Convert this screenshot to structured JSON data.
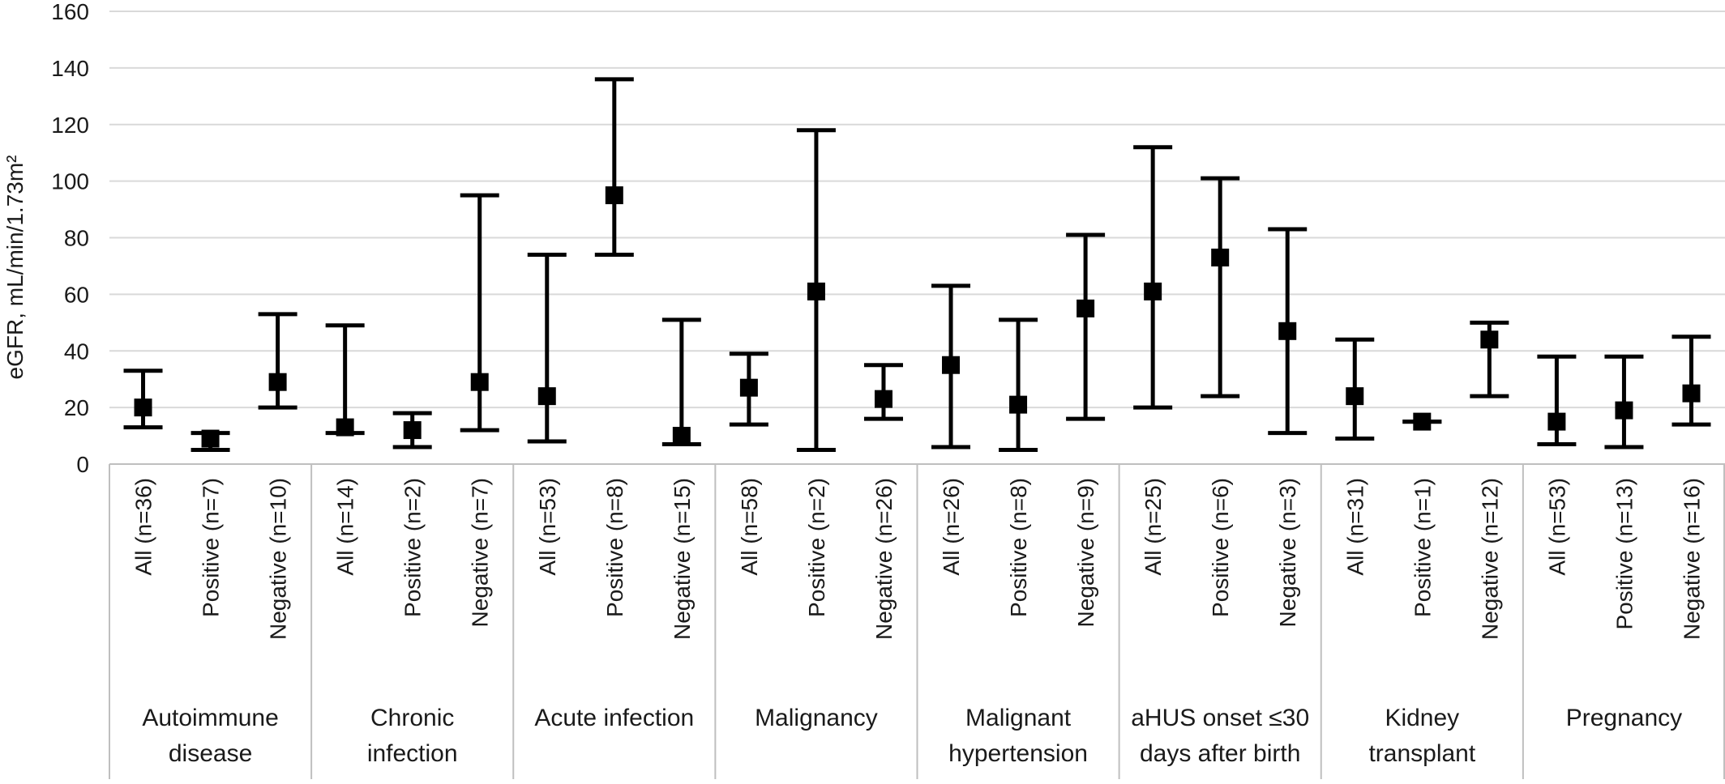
{
  "chart_data": {
    "type": "scatter",
    "title": "",
    "ylabel": "eGFR, mL/min/1.73m²",
    "ylim": [
      0,
      160
    ],
    "yticks": [
      0,
      20,
      40,
      60,
      80,
      100,
      120,
      140,
      160
    ],
    "grid": true,
    "marker": "square",
    "error_bars": true,
    "groups": [
      {
        "label": [
          "Autoimmune",
          "disease"
        ],
        "items": [
          {
            "label": "All (n=36)",
            "value": 20,
            "low": 13,
            "high": 33
          },
          {
            "label": "Positive (n=7)",
            "value": 9,
            "low": 5,
            "high": 11
          },
          {
            "label": "Negative (n=10)",
            "value": 29,
            "low": 20,
            "high": 53
          }
        ]
      },
      {
        "label": [
          "Chronic",
          "infection"
        ],
        "items": [
          {
            "label": "All (n=14)",
            "value": 13,
            "low": 11,
            "high": 49
          },
          {
            "label": "Positive (n=2)",
            "value": 12,
            "low": 6,
            "high": 18
          },
          {
            "label": "Negative (n=7)",
            "value": 29,
            "low": 12,
            "high": 95
          }
        ]
      },
      {
        "label": [
          "Acute infection"
        ],
        "items": [
          {
            "label": "All (n=53)",
            "value": 24,
            "low": 8,
            "high": 74
          },
          {
            "label": "Positive (n=8)",
            "value": 95,
            "low": 74,
            "high": 136
          },
          {
            "label": "Negative (n=15)",
            "value": 10,
            "low": 7,
            "high": 51
          }
        ]
      },
      {
        "label": [
          "Malignancy"
        ],
        "items": [
          {
            "label": "All (n=58)",
            "value": 27,
            "low": 14,
            "high": 39
          },
          {
            "label": "Positive (n=2)",
            "value": 61,
            "low": 5,
            "high": 118
          },
          {
            "label": "Negative (n=26)",
            "value": 23,
            "low": 16,
            "high": 35
          }
        ]
      },
      {
        "label": [
          "Malignant",
          "hypertension"
        ],
        "items": [
          {
            "label": "All (n=26)",
            "value": 35,
            "low": 6,
            "high": 63
          },
          {
            "label": "Positive (n=8)",
            "value": 21,
            "low": 5,
            "high": 51
          },
          {
            "label": "Negative (n=9)",
            "value": 55,
            "low": 16,
            "high": 81
          }
        ]
      },
      {
        "label": [
          "aHUS onset ≤30",
          "days after birth"
        ],
        "items": [
          {
            "label": "All (n=25)",
            "value": 61,
            "low": 20,
            "high": 112
          },
          {
            "label": "Positive (n=6)",
            "value": 73,
            "low": 24,
            "high": 101
          },
          {
            "label": "Negative (n=3)",
            "value": 47,
            "low": 11,
            "high": 83
          }
        ]
      },
      {
        "label": [
          "Kidney",
          "transplant"
        ],
        "items": [
          {
            "label": "All (n=31)",
            "value": 24,
            "low": 9,
            "high": 44
          },
          {
            "label": "Positive (n=1)",
            "value": 15,
            "low": 15,
            "high": 15
          },
          {
            "label": "Negative (n=12)",
            "value": 44,
            "low": 24,
            "high": 50
          }
        ]
      },
      {
        "label": [
          "Pregnancy"
        ],
        "items": [
          {
            "label": "All (n=53)",
            "value": 15,
            "low": 7,
            "high": 38
          },
          {
            "label": "Positive (n=13)",
            "value": 19,
            "low": 6,
            "high": 38
          },
          {
            "label": "Negative (n=16)",
            "value": 25,
            "low": 14,
            "high": 45
          }
        ]
      }
    ]
  }
}
